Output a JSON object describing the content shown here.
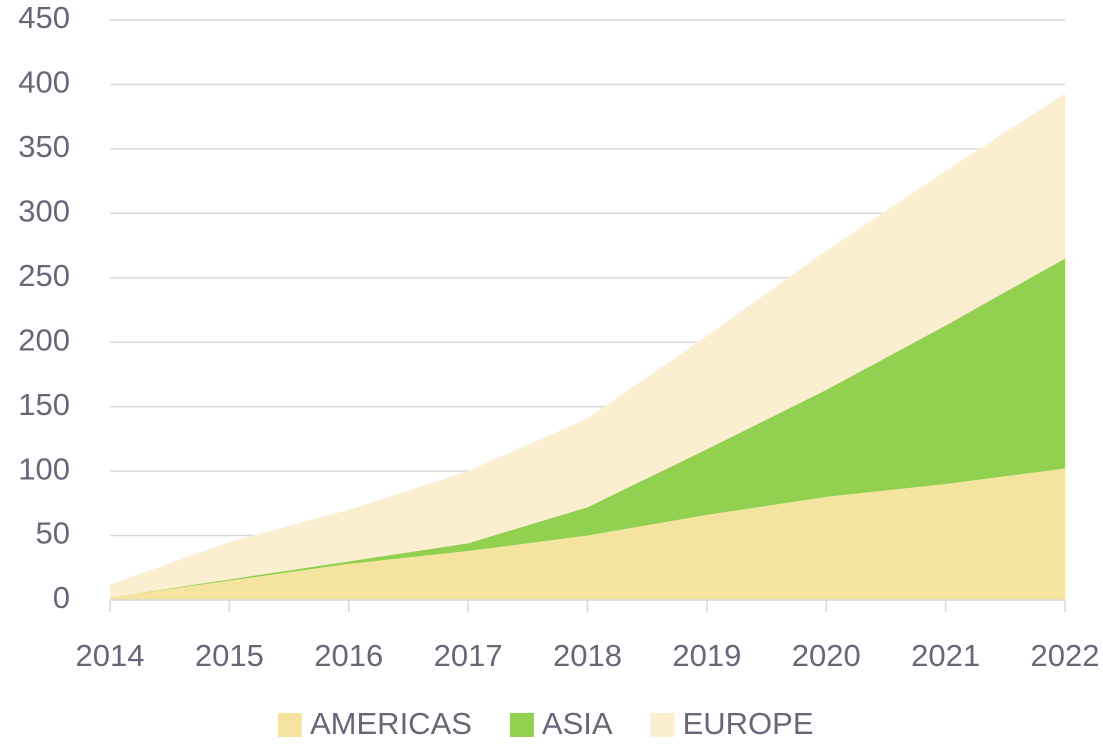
{
  "chart_data": {
    "type": "stacked_area",
    "categories": [
      "2014",
      "2015",
      "2016",
      "2017",
      "2018",
      "2019",
      "2020",
      "2021",
      "2022"
    ],
    "series": [
      {
        "name": "AMERICAS",
        "color": "#f5e3a0",
        "values": [
          2,
          15,
          28,
          38,
          50,
          66,
          80,
          90,
          102
        ]
      },
      {
        "name": "ASIA",
        "color": "#92d050",
        "values": [
          0,
          1,
          2,
          6,
          22,
          51,
          83,
          123,
          163
        ]
      },
      {
        "name": "EUROPE",
        "color": "#fbefd0",
        "values": [
          10,
          29,
          40,
          56,
          69,
          88,
          108,
          120,
          128
        ]
      }
    ],
    "ylim": [
      0,
      450
    ],
    "yticks": [
      0,
      50,
      100,
      150,
      200,
      250,
      300,
      350,
      400,
      450
    ],
    "grid": true,
    "legend": "bottom"
  }
}
